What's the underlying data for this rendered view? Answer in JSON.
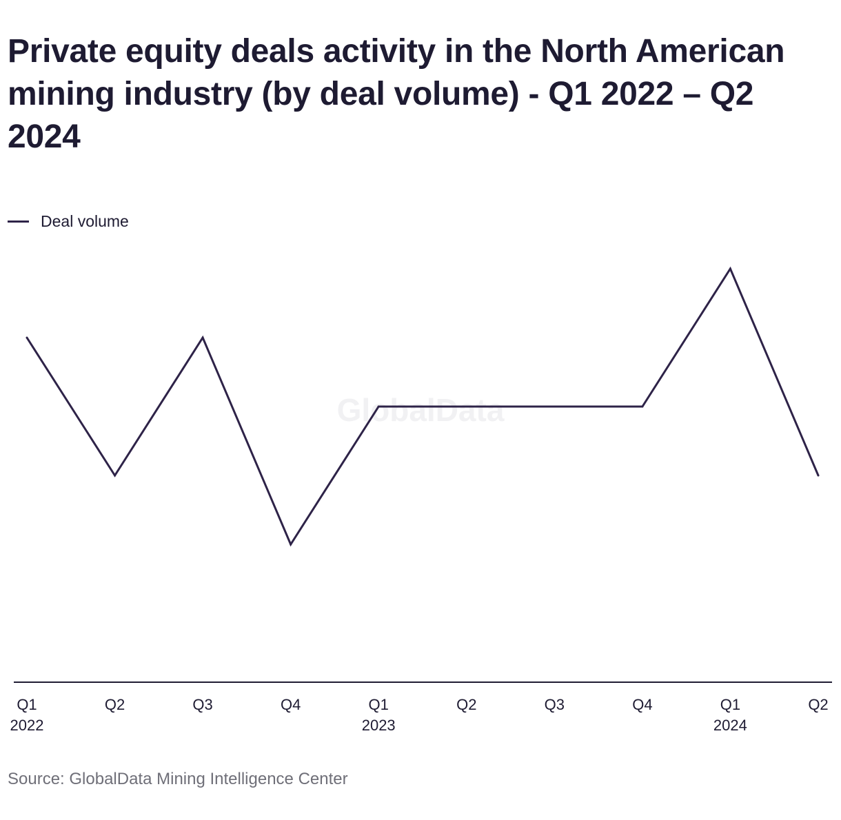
{
  "title": "Private equity deals activity in the North American mining industry (by deal volume) - Q1 2022 – Q2 2024",
  "legend": {
    "label": "Deal volume"
  },
  "watermark": "GlobalData",
  "source": "Source: GlobalData Mining Intelligence Center",
  "colors": {
    "line": "#2e2348",
    "axis": "#1e1b32",
    "watermark": "#f1f1f3",
    "text": "#1e1b32",
    "source": "#6f6f78"
  },
  "chart_data": {
    "type": "line",
    "title": "Private equity deals activity in the North American mining industry (by deal volume) - Q1 2022 – Q2 2024",
    "xlabel": "",
    "ylabel": "",
    "categories": [
      "Q1 2022",
      "Q2 2022",
      "Q3 2022",
      "Q4 2022",
      "Q1 2023",
      "Q2 2023",
      "Q3 2023",
      "Q4 2023",
      "Q1 2024",
      "Q2 2024"
    ],
    "x_tick_labels": [
      {
        "quarter": "Q1",
        "year": "2022"
      },
      {
        "quarter": "Q2",
        "year": ""
      },
      {
        "quarter": "Q3",
        "year": ""
      },
      {
        "quarter": "Q4",
        "year": ""
      },
      {
        "quarter": "Q1",
        "year": "2023"
      },
      {
        "quarter": "Q2",
        "year": ""
      },
      {
        "quarter": "Q3",
        "year": ""
      },
      {
        "quarter": "Q4",
        "year": ""
      },
      {
        "quarter": "Q1",
        "year": "2024"
      },
      {
        "quarter": "Q2",
        "year": ""
      }
    ],
    "series": [
      {
        "name": "Deal volume",
        "values": [
          5,
          3,
          5,
          2,
          4,
          4,
          4,
          4,
          6,
          3
        ]
      }
    ],
    "ylim": [
      0,
      6
    ],
    "y_axis_visible": false,
    "grid": false,
    "legend_position": "top-left"
  }
}
